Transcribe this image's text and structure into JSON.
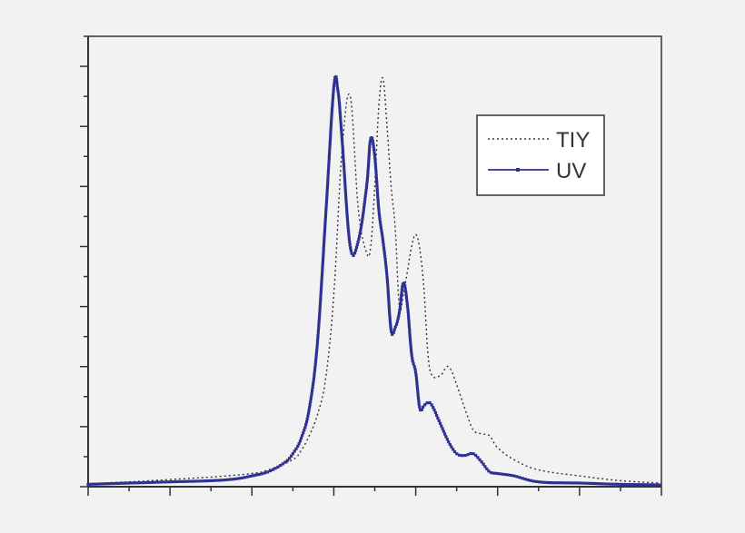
{
  "chart_data": {
    "type": "line",
    "title": "",
    "xlabel": "",
    "ylabel": "",
    "xlim": [
      0,
      7
    ],
    "ylim": [
      0,
      7.5
    ],
    "x_major_ticks": [
      0,
      1,
      2,
      3,
      4,
      5,
      6,
      7
    ],
    "y_major_ticks": [
      0,
      1,
      2,
      3,
      4,
      5,
      6,
      7
    ],
    "tick_labels_shown": false,
    "grid": false,
    "legend": {
      "position": "top-right",
      "entries": [
        "TIY",
        "UV"
      ]
    },
    "colors": {
      "TIY": "#333333",
      "UV": "#2e3192",
      "axes": "#333333",
      "background": "#f2f2f2"
    },
    "series": [
      {
        "name": "TIY",
        "style": "dotted",
        "x": [
          0,
          0.5,
          1,
          1.5,
          2,
          2.2,
          2.5,
          2.6,
          2.7,
          2.8,
          2.9,
          3.0,
          3.1,
          3.2,
          3.3,
          3.4,
          3.45,
          3.5,
          3.55,
          3.6,
          3.65,
          3.7,
          3.75,
          3.8,
          3.85,
          3.9,
          3.95,
          4.0,
          4.05,
          4.1,
          4.15,
          4.2,
          4.3,
          4.4,
          4.5,
          4.6,
          4.7,
          4.8,
          4.9,
          5.0,
          5.2,
          5.5,
          6,
          6.5,
          7
        ],
        "y": [
          0.05,
          0.08,
          0.12,
          0.16,
          0.22,
          0.28,
          0.45,
          0.6,
          0.85,
          1.2,
          1.8,
          3.2,
          5.6,
          6.5,
          4.6,
          3.9,
          4.0,
          5.0,
          6.35,
          6.8,
          6.0,
          5.0,
          4.3,
          3.0,
          3.2,
          3.6,
          4.0,
          4.2,
          3.95,
          3.3,
          2.2,
          1.85,
          1.85,
          2.0,
          1.7,
          1.3,
          0.95,
          0.88,
          0.85,
          0.65,
          0.45,
          0.28,
          0.18,
          0.1,
          0.06
        ]
      },
      {
        "name": "UV",
        "style": "solid-marker",
        "x": [
          0,
          0.5,
          1,
          1.5,
          1.8,
          2.0,
          2.2,
          2.4,
          2.5,
          2.6,
          2.7,
          2.8,
          2.9,
          3.0,
          3.05,
          3.1,
          3.2,
          3.3,
          3.4,
          3.45,
          3.5,
          3.55,
          3.6,
          3.65,
          3.7,
          3.75,
          3.8,
          3.85,
          3.9,
          3.95,
          4.0,
          4.05,
          4.1,
          4.15,
          4.2,
          4.3,
          4.4,
          4.5,
          4.6,
          4.7,
          4.8,
          4.9,
          5.0,
          5.2,
          5.5,
          6,
          6.5,
          7
        ],
        "y": [
          0.04,
          0.06,
          0.08,
          0.1,
          0.13,
          0.18,
          0.25,
          0.4,
          0.55,
          0.8,
          1.3,
          2.4,
          4.5,
          6.65,
          6.6,
          5.8,
          4.0,
          4.1,
          5.0,
          5.8,
          5.5,
          4.6,
          4.1,
          3.5,
          2.6,
          2.65,
          2.9,
          3.4,
          3.0,
          2.2,
          1.9,
          1.3,
          1.35,
          1.4,
          1.35,
          1.05,
          0.75,
          0.55,
          0.52,
          0.55,
          0.42,
          0.25,
          0.22,
          0.18,
          0.08,
          0.06,
          0.04,
          0.03
        ]
      }
    ]
  }
}
